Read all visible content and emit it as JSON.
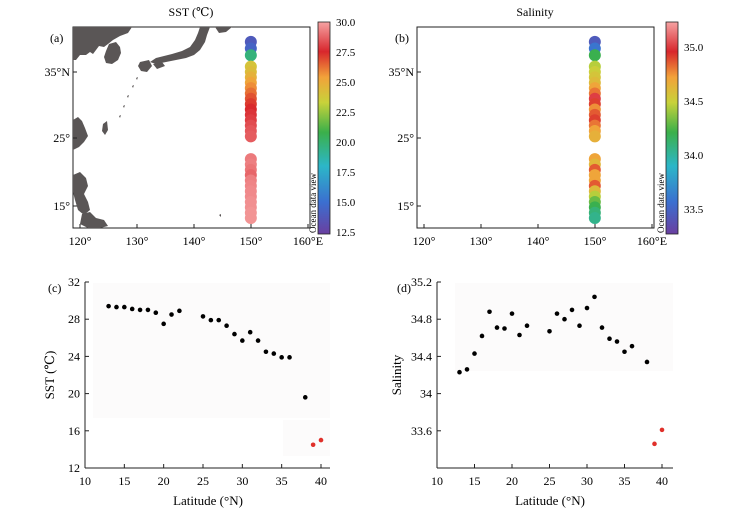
{
  "panels": {
    "a": {
      "tag": "(a)",
      "title": "SST (℃)",
      "lat_ticks": [
        "35°N",
        "25°",
        "15°"
      ],
      "lon_ticks": [
        "120°",
        "130°",
        "140°",
        "150°",
        "160°E"
      ],
      "colorbar": {
        "ticks": [
          "30.0",
          "27.5",
          "25.0",
          "22.5",
          "20.0",
          "17.5",
          "15.0",
          "12.5"
        ],
        "min": 12.5,
        "max": 30.0,
        "credit": "Ocean data view"
      },
      "station_lon": 150,
      "stations": [
        {
          "lat": 39.5,
          "value": 14.0
        },
        {
          "lat": 38.5,
          "value": 14.5
        },
        {
          "lat": 37.5,
          "value": 19.8
        },
        {
          "lat": 35.8,
          "value": 24.0
        },
        {
          "lat": 35.0,
          "value": 24.3
        },
        {
          "lat": 34.2,
          "value": 24.8
        },
        {
          "lat": 33.4,
          "value": 25.3
        },
        {
          "lat": 32.6,
          "value": 25.8
        },
        {
          "lat": 31.8,
          "value": 26.3
        },
        {
          "lat": 31.0,
          "value": 26.8
        },
        {
          "lat": 30.2,
          "value": 27.2
        },
        {
          "lat": 29.4,
          "value": 27.5
        },
        {
          "lat": 28.6,
          "value": 27.8
        },
        {
          "lat": 27.8,
          "value": 28.0
        },
        {
          "lat": 27.0,
          "value": 28.3
        },
        {
          "lat": 26.2,
          "value": 28.5
        },
        {
          "lat": 25.4,
          "value": 28.6
        },
        {
          "lat": 22.0,
          "value": 29.2
        },
        {
          "lat": 21.2,
          "value": 29.3
        },
        {
          "lat": 20.4,
          "value": 29.1
        },
        {
          "lat": 19.6,
          "value": 28.8
        },
        {
          "lat": 18.8,
          "value": 29.3
        },
        {
          "lat": 18.0,
          "value": 29.4
        },
        {
          "lat": 17.2,
          "value": 29.5
        },
        {
          "lat": 16.4,
          "value": 29.5
        },
        {
          "lat": 15.6,
          "value": 29.6
        },
        {
          "lat": 14.8,
          "value": 29.6
        },
        {
          "lat": 14.0,
          "value": 29.7
        },
        {
          "lat": 13.2,
          "value": 29.7
        }
      ]
    },
    "b": {
      "tag": "(b)",
      "title": "Salinity",
      "lat_ticks": [
        "35°N",
        "25°",
        "15°"
      ],
      "lon_ticks": [
        "120°",
        "130°",
        "140°",
        "150°",
        "160°E"
      ],
      "colorbar": {
        "ticks": [
          "35.0",
          "34.5",
          "34.0",
          "33.5"
        ],
        "min": 33.28,
        "max": 35.22,
        "credit": "Ocean data view"
      },
      "station_lon": 150,
      "stations": [
        {
          "lat": 39.5,
          "value": 33.45
        },
        {
          "lat": 38.5,
          "value": 33.6
        },
        {
          "lat": 37.5,
          "value": 34.2
        },
        {
          "lat": 35.8,
          "value": 34.45
        },
        {
          "lat": 35.0,
          "value": 34.5
        },
        {
          "lat": 34.2,
          "value": 34.55
        },
        {
          "lat": 33.4,
          "value": 34.6
        },
        {
          "lat": 32.6,
          "value": 34.7
        },
        {
          "lat": 31.8,
          "value": 34.8
        },
        {
          "lat": 31.0,
          "value": 35.0
        },
        {
          "lat": 30.2,
          "value": 34.9
        },
        {
          "lat": 29.4,
          "value": 34.75
        },
        {
          "lat": 28.6,
          "value": 34.85
        },
        {
          "lat": 27.8,
          "value": 34.9
        },
        {
          "lat": 27.0,
          "value": 34.8
        },
        {
          "lat": 26.2,
          "value": 34.7
        },
        {
          "lat": 25.4,
          "value": 34.65
        },
        {
          "lat": 22.0,
          "value": 34.7
        },
        {
          "lat": 21.2,
          "value": 34.62
        },
        {
          "lat": 20.4,
          "value": 34.85
        },
        {
          "lat": 19.6,
          "value": 34.7
        },
        {
          "lat": 18.8,
          "value": 34.7
        },
        {
          "lat": 18.0,
          "value": 34.85
        },
        {
          "lat": 17.2,
          "value": 34.6
        },
        {
          "lat": 16.4,
          "value": 34.45
        },
        {
          "lat": 15.6,
          "value": 34.3
        },
        {
          "lat": 14.8,
          "value": 34.2
        },
        {
          "lat": 14.0,
          "value": 34.1
        },
        {
          "lat": 13.2,
          "value": 34.05
        }
      ]
    }
  },
  "chart_data": [
    {
      "type": "scatter",
      "tag": "(c)",
      "title": "",
      "xlabel": "Latitude (°N)",
      "ylabel": "SST (℃)",
      "xlim": [
        10,
        40
      ],
      "ylim": [
        12,
        32
      ],
      "xticks": [
        10,
        15,
        20,
        25,
        30,
        35,
        40
      ],
      "yticks": [
        12,
        16,
        20,
        24,
        28,
        32
      ],
      "series": [
        {
          "name": "stations",
          "color": "#000000",
          "x": [
            13,
            14,
            15,
            16,
            17,
            18,
            19,
            20,
            21,
            22,
            25,
            26,
            27,
            28,
            29,
            30,
            31,
            32,
            33,
            34,
            35,
            36,
            38
          ],
          "y": [
            29.4,
            29.3,
            29.3,
            29.1,
            29.0,
            29.0,
            28.7,
            27.5,
            28.5,
            28.9,
            28.3,
            27.9,
            27.9,
            27.3,
            26.4,
            25.7,
            26.6,
            25.7,
            24.5,
            24.3,
            23.9,
            23.9,
            19.6
          ]
        },
        {
          "name": "outliers",
          "color": "#e0302a",
          "x": [
            39,
            40
          ],
          "y": [
            14.5,
            15.0
          ]
        }
      ]
    },
    {
      "type": "scatter",
      "tag": "(d)",
      "title": "",
      "xlabel": "Latitude (°N)",
      "ylabel": "Salinity",
      "xlim": [
        10,
        40
      ],
      "ylim": [
        33.2,
        35.2
      ],
      "xticks": [
        10,
        15,
        20,
        25,
        30,
        35,
        40
      ],
      "yticks": [
        33.6,
        34.0,
        34.4,
        34.8,
        35.2
      ],
      "series": [
        {
          "name": "stations",
          "color": "#000000",
          "x": [
            13,
            14,
            15,
            16,
            17,
            18,
            19,
            20,
            21,
            22,
            25,
            26,
            27,
            28,
            29,
            30,
            31,
            32,
            33,
            34,
            35,
            36,
            38
          ],
          "y": [
            34.23,
            34.26,
            34.43,
            34.62,
            34.88,
            34.71,
            34.7,
            34.86,
            34.63,
            34.73,
            34.67,
            34.86,
            34.8,
            34.9,
            34.73,
            34.92,
            35.04,
            34.71,
            34.59,
            34.56,
            34.45,
            34.51,
            34.34
          ]
        },
        {
          "name": "outliers",
          "color": "#e0302a",
          "x": [
            39,
            40
          ],
          "y": [
            33.46,
            33.61
          ]
        }
      ]
    }
  ]
}
